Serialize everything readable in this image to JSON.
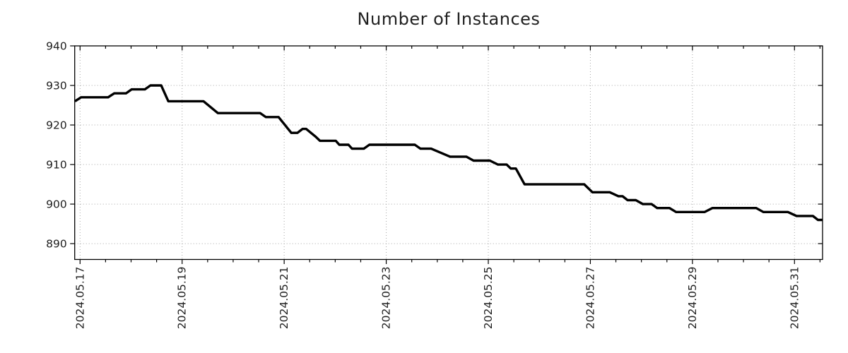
{
  "chart_data": {
    "type": "line",
    "title": "Number of Instances",
    "series_name": "instances",
    "colors": {
      "line": "#000000",
      "axis": "#000000",
      "grid": "#a6a6a6",
      "tick_label": "#1f1f1f",
      "title": "#1f1f1f",
      "background": "#ffffff"
    },
    "x_axis": {
      "tick_labels": [
        "2024.05.17",
        "2024.05.19",
        "2024.05.21",
        "2024.05.23",
        "2024.05.25",
        "2024.05.27",
        "2024.05.29",
        "2024.05.31"
      ],
      "tick_positions_days": [
        0,
        2,
        4,
        6,
        8,
        10,
        12,
        14
      ],
      "minor_interval_days": 0.5,
      "range_days": [
        -0.105,
        14.55
      ],
      "label_rotation_deg": 90
    },
    "y_axis": {
      "ticks": [
        890,
        900,
        910,
        920,
        930,
        940
      ],
      "range": [
        886,
        940
      ]
    },
    "grid": {
      "on": true,
      "style": "dotted"
    },
    "legend": {
      "visible": false
    },
    "points": [
      [
        -0.1,
        926
      ],
      [
        0.02,
        927
      ],
      [
        0.55,
        927
      ],
      [
        0.67,
        928
      ],
      [
        0.9,
        928
      ],
      [
        1.01,
        929
      ],
      [
        1.27,
        929
      ],
      [
        1.38,
        930
      ],
      [
        1.59,
        930
      ],
      [
        1.73,
        926
      ],
      [
        2.42,
        926
      ],
      [
        2.7,
        923
      ],
      [
        3.53,
        923
      ],
      [
        3.64,
        922
      ],
      [
        3.89,
        922
      ],
      [
        4.14,
        918
      ],
      [
        4.26,
        918
      ],
      [
        4.36,
        919
      ],
      [
        4.43,
        919
      ],
      [
        4.62,
        917
      ],
      [
        4.7,
        916
      ],
      [
        5.01,
        916
      ],
      [
        5.08,
        915
      ],
      [
        5.26,
        915
      ],
      [
        5.33,
        914
      ],
      [
        5.56,
        914
      ],
      [
        5.67,
        915
      ],
      [
        6.56,
        915
      ],
      [
        6.67,
        914
      ],
      [
        6.88,
        914
      ],
      [
        7.25,
        912
      ],
      [
        7.57,
        912
      ],
      [
        7.71,
        911
      ],
      [
        8.03,
        911
      ],
      [
        8.19,
        910
      ],
      [
        8.36,
        910
      ],
      [
        8.44,
        909
      ],
      [
        8.54,
        909
      ],
      [
        8.71,
        905
      ],
      [
        9.88,
        905
      ],
      [
        10.04,
        903
      ],
      [
        10.38,
        903
      ],
      [
        10.55,
        902
      ],
      [
        10.63,
        902
      ],
      [
        10.73,
        901
      ],
      [
        10.89,
        901
      ],
      [
        11.03,
        900
      ],
      [
        11.2,
        900
      ],
      [
        11.31,
        899
      ],
      [
        11.55,
        899
      ],
      [
        11.68,
        898
      ],
      [
        12.24,
        898
      ],
      [
        12.39,
        899
      ],
      [
        13.25,
        899
      ],
      [
        13.39,
        898
      ],
      [
        13.87,
        898
      ],
      [
        14.04,
        897
      ],
      [
        14.36,
        897
      ],
      [
        14.46,
        896
      ],
      [
        14.55,
        896
      ]
    ]
  }
}
